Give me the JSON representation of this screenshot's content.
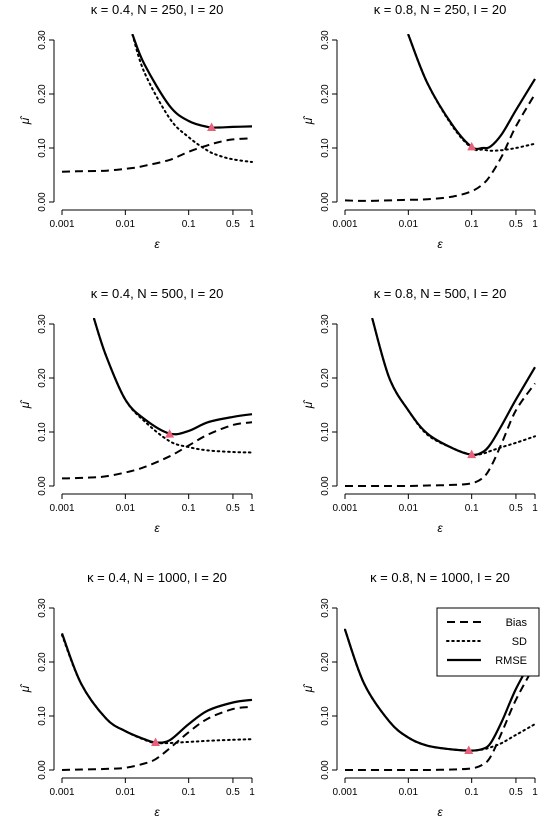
{
  "figure": {
    "legend": {
      "placement": "top-right of bottom-right panel",
      "entries": [
        {
          "label": "Bias",
          "style": "dashed"
        },
        {
          "label": "SD",
          "style": "dotted"
        },
        {
          "label": "RMSE",
          "style": "solid"
        }
      ]
    },
    "marker_color": "#e8607a",
    "line_color": "#000000"
  },
  "chart_data": [
    {
      "type": "line",
      "title": "κ = 0.4, N = 250, I = 20",
      "xlabel": "ε",
      "ylabel": "μ̂",
      "x_scale": "log",
      "xlim": [
        0.001,
        1
      ],
      "ylim": [
        0,
        0.3
      ],
      "x_ticks": [
        "0.001",
        "0.01",
        "0.1",
        "0.5",
        "1"
      ],
      "x_tick_values": [
        0.001,
        0.01,
        0.1,
        0.5,
        1
      ],
      "y_ticks": [
        "0.00",
        "0.10",
        "0.20",
        "0.30"
      ],
      "y_tick_values": [
        0,
        0.1,
        0.2,
        0.3
      ],
      "x": [
        0.001,
        0.002,
        0.005,
        0.013,
        0.02,
        0.05,
        0.1,
        0.2,
        0.3,
        0.5,
        1
      ],
      "series": [
        {
          "name": "Bias",
          "style": "dashed",
          "values": [
            0.056,
            0.057,
            0.058,
            0.063,
            0.067,
            0.078,
            0.093,
            0.105,
            0.111,
            0.116,
            0.118
          ]
        },
        {
          "name": "SD",
          "style": "dotted",
          "values": [
            null,
            null,
            null,
            0.31,
            0.24,
            0.155,
            0.12,
            0.095,
            0.086,
            0.079,
            0.074
          ]
        },
        {
          "name": "RMSE",
          "style": "solid",
          "values": [
            null,
            null,
            null,
            0.31,
            0.255,
            0.178,
            0.15,
            0.139,
            0.138,
            0.139,
            0.14
          ]
        }
      ],
      "optimum": {
        "x": 0.23,
        "y": 0.138
      }
    },
    {
      "type": "line",
      "title": "κ = 0.8, N = 250, I = 20",
      "xlabel": "ε",
      "ylabel": "μ̂",
      "x_scale": "log",
      "xlim": [
        0.001,
        1
      ],
      "ylim": [
        0,
        0.3
      ],
      "x_ticks": [
        "0.001",
        "0.01",
        "0.1",
        "0.5",
        "1"
      ],
      "x_tick_values": [
        0.001,
        0.01,
        0.1,
        0.5,
        1
      ],
      "y_ticks": [
        "0.00",
        "0.10",
        "0.20",
        "0.30"
      ],
      "y_tick_values": [
        0,
        0.1,
        0.2,
        0.3
      ],
      "x": [
        0.001,
        0.002,
        0.005,
        0.01,
        0.02,
        0.05,
        0.1,
        0.15,
        0.2,
        0.3,
        0.5,
        1
      ],
      "series": [
        {
          "name": "Bias",
          "style": "dashed",
          "values": [
            0.003,
            0.002,
            0.003,
            0.004,
            0.005,
            0.01,
            0.02,
            0.033,
            0.05,
            0.085,
            0.14,
            0.2
          ]
        },
        {
          "name": "SD",
          "style": "dotted",
          "values": [
            null,
            null,
            null,
            0.31,
            0.22,
            0.14,
            0.1,
            0.097,
            0.095,
            0.096,
            0.1,
            0.108
          ]
        },
        {
          "name": "RMSE",
          "style": "solid",
          "values": [
            null,
            null,
            null,
            0.31,
            0.22,
            0.142,
            0.102,
            0.1,
            0.103,
            0.126,
            0.17,
            0.228
          ]
        }
      ],
      "optimum": {
        "x": 0.1,
        "y": 0.102
      }
    },
    {
      "type": "line",
      "title": "κ = 0.4, N = 500, I = 20",
      "xlabel": "ε",
      "ylabel": "μ̂",
      "x_scale": "log",
      "xlim": [
        0.001,
        1
      ],
      "ylim": [
        0,
        0.3
      ],
      "x_ticks": [
        "0.001",
        "0.01",
        "0.1",
        "0.5",
        "1"
      ],
      "x_tick_values": [
        0.001,
        0.01,
        0.1,
        0.5,
        1
      ],
      "y_ticks": [
        "0.00",
        "0.10",
        "0.20",
        "0.30"
      ],
      "y_tick_values": [
        0,
        0.1,
        0.2,
        0.3
      ],
      "x": [
        0.001,
        0.002,
        0.0032,
        0.005,
        0.01,
        0.02,
        0.05,
        0.1,
        0.2,
        0.5,
        1
      ],
      "series": [
        {
          "name": "Bias",
          "style": "dashed",
          "values": [
            0.014,
            0.015,
            0.016,
            0.018,
            0.025,
            0.035,
            0.055,
            0.075,
            0.095,
            0.113,
            0.118
          ]
        },
        {
          "name": "SD",
          "style": "dotted",
          "values": [
            null,
            null,
            0.31,
            0.24,
            0.16,
            0.12,
            0.083,
            0.072,
            0.066,
            0.063,
            0.062
          ]
        },
        {
          "name": "RMSE",
          "style": "solid",
          "values": [
            null,
            null,
            0.31,
            0.24,
            0.16,
            0.124,
            0.097,
            0.102,
            0.118,
            0.128,
            0.133
          ]
        }
      ],
      "optimum": {
        "x": 0.05,
        "y": 0.096
      }
    },
    {
      "type": "line",
      "title": "κ = 0.8, N = 500, I = 20",
      "xlabel": "ε",
      "ylabel": "μ̂",
      "x_scale": "log",
      "xlim": [
        0.001,
        1
      ],
      "ylim": [
        0,
        0.3
      ],
      "x_ticks": [
        "0.001",
        "0.01",
        "0.1",
        "0.5",
        "1"
      ],
      "x_tick_values": [
        0.001,
        0.01,
        0.1,
        0.5,
        1
      ],
      "y_ticks": [
        "0.00",
        "0.10",
        "0.20",
        "0.30"
      ],
      "y_tick_values": [
        0,
        0.1,
        0.2,
        0.3
      ],
      "x": [
        0.001,
        0.0027,
        0.005,
        0.01,
        0.02,
        0.05,
        0.1,
        0.15,
        0.2,
        0.3,
        0.5,
        1
      ],
      "series": [
        {
          "name": "Bias",
          "style": "dashed",
          "values": [
            0.0,
            0.0,
            0.0,
            0.0,
            0.001,
            0.002,
            0.005,
            0.015,
            0.035,
            0.08,
            0.14,
            0.19
          ]
        },
        {
          "name": "SD",
          "style": "dotted",
          "values": [
            null,
            0.31,
            0.2,
            0.14,
            0.095,
            0.07,
            0.058,
            0.06,
            0.065,
            0.072,
            0.08,
            0.092
          ]
        },
        {
          "name": "RMSE",
          "style": "solid",
          "values": [
            null,
            0.31,
            0.2,
            0.14,
            0.097,
            0.07,
            0.058,
            0.063,
            0.078,
            0.113,
            0.16,
            0.22
          ]
        }
      ],
      "optimum": {
        "x": 0.1,
        "y": 0.058
      }
    },
    {
      "type": "line",
      "title": "κ = 0.4, N = 1000, I = 20",
      "xlabel": "ε",
      "ylabel": "μ̂",
      "x_scale": "log",
      "xlim": [
        0.001,
        1
      ],
      "ylim": [
        0,
        0.3
      ],
      "x_ticks": [
        "0.001",
        "0.01",
        "0.1",
        "0.5",
        "1"
      ],
      "x_tick_values": [
        0.001,
        0.01,
        0.1,
        0.5,
        1
      ],
      "y_ticks": [
        "0.00",
        "0.10",
        "0.20",
        "0.30"
      ],
      "y_tick_values": [
        0,
        0.1,
        0.2,
        0.3
      ],
      "x": [
        0.001,
        0.002,
        0.005,
        0.01,
        0.02,
        0.03,
        0.05,
        0.1,
        0.2,
        0.5,
        1
      ],
      "series": [
        {
          "name": "Bias",
          "style": "dashed",
          "values": [
            0.0,
            0.001,
            0.002,
            0.004,
            0.012,
            0.02,
            0.04,
            0.07,
            0.095,
            0.113,
            0.117
          ]
        },
        {
          "name": "SD",
          "style": "dotted",
          "values": [
            0.25,
            0.16,
            0.095,
            0.072,
            0.056,
            0.05,
            0.05,
            0.052,
            0.054,
            0.056,
            0.057
          ]
        },
        {
          "name": "RMSE",
          "style": "solid",
          "values": [
            0.253,
            0.16,
            0.095,
            0.072,
            0.057,
            0.051,
            0.055,
            0.085,
            0.11,
            0.125,
            0.13
          ]
        }
      ],
      "optimum": {
        "x": 0.03,
        "y": 0.051
      }
    },
    {
      "type": "line",
      "title": "κ = 0.8, N = 1000, I = 20",
      "xlabel": "ε",
      "ylabel": "μ̂",
      "x_scale": "log",
      "xlim": [
        0.001,
        1
      ],
      "ylim": [
        0,
        0.3
      ],
      "x_ticks": [
        "0.001",
        "0.01",
        "0.1",
        "0.5",
        "1"
      ],
      "x_tick_values": [
        0.001,
        0.01,
        0.1,
        0.5,
        1
      ],
      "y_ticks": [
        "0.00",
        "0.10",
        "0.20",
        "0.30"
      ],
      "y_tick_values": [
        0,
        0.1,
        0.2,
        0.3
      ],
      "x": [
        0.001,
        0.002,
        0.005,
        0.01,
        0.02,
        0.05,
        0.1,
        0.15,
        0.2,
        0.3,
        0.5,
        1
      ],
      "series": [
        {
          "name": "Bias",
          "style": "dashed",
          "values": [
            0.0,
            0.0,
            0.0,
            0.0,
            0.0,
            0.001,
            0.003,
            0.01,
            0.025,
            0.07,
            0.13,
            0.195
          ]
        },
        {
          "name": "SD",
          "style": "dotted",
          "values": [
            0.26,
            0.16,
            0.09,
            0.06,
            0.045,
            0.038,
            0.036,
            0.038,
            0.042,
            0.05,
            0.065,
            0.085
          ]
        },
        {
          "name": "RMSE",
          "style": "solid",
          "values": [
            0.26,
            0.16,
            0.09,
            0.06,
            0.045,
            0.038,
            0.036,
            0.039,
            0.05,
            0.09,
            0.15,
            0.215
          ]
        }
      ],
      "optimum": {
        "x": 0.09,
        "y": 0.036
      }
    }
  ]
}
